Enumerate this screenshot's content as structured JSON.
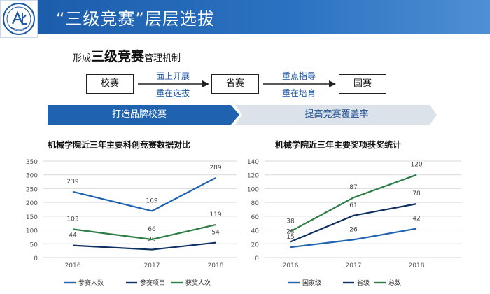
{
  "header": {
    "title": "“三级竞赛”层层选拔",
    "logo_alt": "school-logo"
  },
  "subtitle": {
    "prefix": "形成",
    "emphasis": "三级竞赛",
    "suffix": "管理机制"
  },
  "flow": {
    "nodes": [
      "校赛",
      "省赛",
      "国赛"
    ],
    "link1": {
      "top": "面上开展",
      "bottom": "重在选拔"
    },
    "link2": {
      "top": "重点指导",
      "bottom": "重在培育"
    }
  },
  "banners": {
    "left": "打造品牌校赛",
    "right": "提高竞赛覆盖率"
  },
  "colors": {
    "header": "#1a5aa8",
    "series_blue": "#1f63b0",
    "series_navy": "#0f2f63",
    "series_green": "#2e7d45",
    "label_blue": "#1f5aa8"
  },
  "chart_data": [
    {
      "type": "line",
      "title": "机械学院近三年主要科创竞赛数据对比",
      "categories": [
        "2016",
        "2017",
        "2018"
      ],
      "ylim": [
        0,
        350
      ],
      "yticks": [
        0,
        50,
        100,
        150,
        200,
        250,
        300,
        350
      ],
      "grid": true,
      "legend": "bottom",
      "series": [
        {
          "name": "参赛人数",
          "values": [
            239,
            169,
            289
          ],
          "color": "#1f63b0"
        },
        {
          "name": "参赛项目",
          "values": [
            44,
            29,
            54
          ],
          "color": "#0f2f63"
        },
        {
          "name": "获奖人次",
          "values": [
            103,
            66,
            119
          ],
          "color": "#2e7d45"
        }
      ]
    },
    {
      "type": "line",
      "title": "机械学院近三年主要奖项获奖统计",
      "categories": [
        "2016",
        "2017",
        "2018"
      ],
      "ylim": [
        0,
        140
      ],
      "yticks": [
        0,
        20,
        40,
        60,
        80,
        100,
        120,
        140
      ],
      "grid": true,
      "legend": "bottom",
      "series": [
        {
          "name": "国家级",
          "values": [
            15,
            26,
            42
          ],
          "color": "#1f63b0"
        },
        {
          "name": "省级",
          "values": [
            23,
            61,
            78
          ],
          "color": "#0f2f63"
        },
        {
          "name": "总数",
          "values": [
            38,
            87,
            120
          ],
          "color": "#2e7d45"
        }
      ]
    }
  ]
}
